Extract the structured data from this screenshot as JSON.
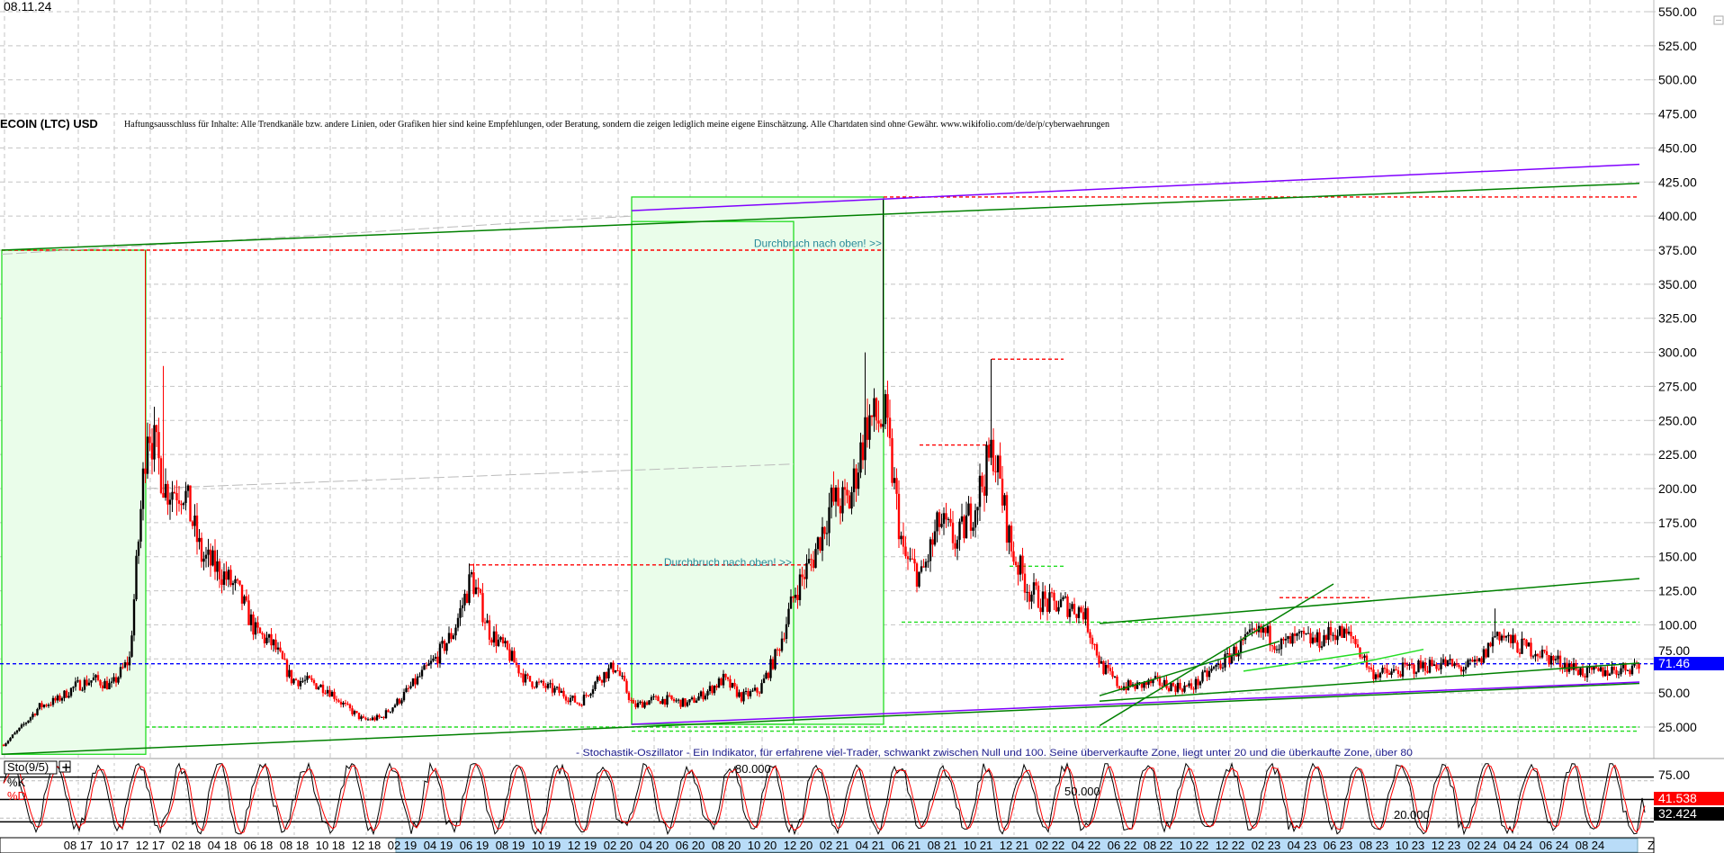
{
  "header": {
    "date": "08.11.24",
    "title": "ECOIN (LTC) USD",
    "disclaimer": "Haftungsausschluss für Inhalte: Alle Trendkanäle bzw. andere Linien, oder Grafiken hier sind keine Empfehlungen, oder Beratung, sondern die zeigen lediglich meine eigene Einschätzung. Alle Chartdaten sind ohne Gewähr. www.wikifolio.com/de/de/p/cyberwaehrungen"
  },
  "colors": {
    "up_candle": "#000000",
    "down_candle": "#ff0000",
    "trend_green": "#008000",
    "trend_purple": "#8000ff",
    "light_green": "#22dd22",
    "resistance_red": "#ff0000",
    "price_line": "#0000ff",
    "box_fill": "#eafdea",
    "annotation_text": "#2a8a9a",
    "axis_highlight": "#b9dcf8"
  },
  "chart_data": [
    {
      "type": "candlestick",
      "y_axis": {
        "ylim": [
          0,
          550
        ],
        "ticks": [
          "550.00",
          "525.00",
          "500.00",
          "475.00",
          "450.00",
          "425.00",
          "400.00",
          "375.00",
          "350.00",
          "325.00",
          "300.00",
          "275.00",
          "250.00",
          "225.00",
          "200.00",
          "175.00",
          "150.00",
          "125.00",
          "100.00",
          "75.00",
          "50.00",
          "25.000"
        ],
        "position": "right",
        "grid": true
      },
      "x_axis": {
        "start": "2017-04",
        "end": "2024-11",
        "tick_labels": [
          "08 17",
          "10 17",
          "12 17",
          "02 18",
          "04 18",
          "06 18",
          "08 18",
          "10 18",
          "12 18",
          "02 19",
          "04 19",
          "06 19",
          "08 19",
          "10 19",
          "12 19",
          "02 20",
          "04 20",
          "06 20",
          "08 20",
          "10 20",
          "12 20",
          "02 21",
          "04 21",
          "06 21",
          "08 21",
          "10 21",
          "12 21",
          "02 22",
          "04 22",
          "06 22",
          "08 22",
          "10 22",
          "12 22",
          "02 23",
          "04 23",
          "06 23",
          "08 23",
          "10 23",
          "12 23",
          "02 24",
          "04 24",
          "06 24",
          "08 24"
        ],
        "end_label": "Z"
      },
      "monthly_close": {
        "dates": [
          "2017-04",
          "2017-05",
          "2017-06",
          "2017-07",
          "2017-08",
          "2017-09",
          "2017-10",
          "2017-11",
          "2017-12",
          "2018-01",
          "2018-02",
          "2018-03",
          "2018-04",
          "2018-05",
          "2018-06",
          "2018-07",
          "2018-08",
          "2018-09",
          "2018-10",
          "2018-11",
          "2018-12",
          "2019-01",
          "2019-02",
          "2019-03",
          "2019-04",
          "2019-05",
          "2019-06",
          "2019-07",
          "2019-08",
          "2019-09",
          "2019-10",
          "2019-11",
          "2019-12",
          "2020-01",
          "2020-02",
          "2020-03",
          "2020-04",
          "2020-05",
          "2020-06",
          "2020-07",
          "2020-08",
          "2020-09",
          "2020-10",
          "2020-11",
          "2020-12",
          "2021-01",
          "2021-02",
          "2021-03",
          "2021-04",
          "2021-05",
          "2021-06",
          "2021-07",
          "2021-08",
          "2021-09",
          "2021-10",
          "2021-11",
          "2021-12",
          "2022-01",
          "2022-02",
          "2022-03",
          "2022-04",
          "2022-05",
          "2022-06",
          "2022-07",
          "2022-08",
          "2022-09",
          "2022-10",
          "2022-11",
          "2022-12",
          "2023-01",
          "2023-02",
          "2023-03",
          "2023-04",
          "2023-05",
          "2023-06",
          "2023-07",
          "2023-08",
          "2023-09",
          "2023-10",
          "2023-11",
          "2023-12",
          "2024-01",
          "2024-02",
          "2024-03",
          "2024-04",
          "2024-05",
          "2024-06",
          "2024-07",
          "2024-08",
          "2024-09",
          "2024-10",
          "2024-11"
        ],
        "values": [
          12,
          25,
          40,
          45,
          55,
          60,
          55,
          75,
          250,
          200,
          200,
          150,
          140,
          125,
          95,
          85,
          60,
          58,
          53,
          40,
          30,
          32,
          45,
          60,
          75,
          95,
          135,
          95,
          80,
          60,
          55,
          50,
          42,
          60,
          70,
          40,
          45,
          45,
          42,
          50,
          60,
          47,
          52,
          80,
          125,
          150,
          190,
          190,
          250,
          250,
          150,
          135,
          175,
          160,
          190,
          230,
          155,
          125,
          115,
          115,
          110,
          70,
          55,
          55,
          58,
          55,
          54,
          65,
          75,
          88,
          95,
          85,
          90,
          88,
          95,
          90,
          65,
          64,
          68,
          70,
          72,
          68,
          72,
          95,
          85,
          82,
          75,
          70,
          64,
          66,
          68,
          71.46
        ]
      },
      "peaks": [
        {
          "date": "2017-12",
          "high": 375
        },
        {
          "date": "2018-01",
          "high": 290
        },
        {
          "date": "2019-06",
          "high": 145
        },
        {
          "date": "2021-04",
          "high": 300
        },
        {
          "date": "2021-05",
          "high": 412
        },
        {
          "date": "2021-11",
          "high": 295
        },
        {
          "date": "2024-03",
          "high": 112
        }
      ],
      "last_price": "71.46",
      "trend_lines": [
        {
          "kind": "green",
          "from": [
            "2017-04",
            375
          ],
          "to": [
            "2024-11",
            424
          ]
        },
        {
          "kind": "purple",
          "from": [
            "2020-03",
            404
          ],
          "to": [
            "2024-11",
            438
          ]
        },
        {
          "kind": "green",
          "from": [
            "2017-04",
            5
          ],
          "to": [
            "2024-11",
            57
          ]
        },
        {
          "kind": "purple",
          "from": [
            "2020-03",
            27
          ],
          "to": [
            "2024-11",
            58
          ]
        },
        {
          "kind": "green",
          "from": [
            "2022-05",
            101
          ],
          "to": [
            "2024-11",
            134
          ]
        },
        {
          "kind": "green",
          "from": [
            "2022-05",
            26
          ],
          "to": [
            "2023-06",
            130
          ]
        },
        {
          "kind": "green",
          "from": [
            "2022-05",
            48
          ],
          "to": [
            "2023-03",
            88
          ]
        },
        {
          "kind": "green",
          "from": [
            "2022-05",
            44
          ],
          "to": [
            "2024-11",
            72
          ]
        },
        {
          "kind": "lightgreen",
          "from": [
            "2023-01",
            66
          ],
          "to": [
            "2023-08",
            80
          ]
        },
        {
          "kind": "lightgreen",
          "from": [
            "2023-06",
            68
          ],
          "to": [
            "2023-11",
            82
          ]
        }
      ],
      "horizontal_levels": [
        {
          "kind": "red",
          "price": 375,
          "from": "2017-04",
          "to": "2021-05"
        },
        {
          "kind": "red",
          "price": 414,
          "from": "2021-05",
          "to": "2024-11"
        },
        {
          "kind": "red",
          "price": 144,
          "from": "2019-06",
          "to": "2021-01"
        },
        {
          "kind": "red",
          "price": 295,
          "from": "2021-11",
          "to": "2022-03"
        },
        {
          "kind": "red",
          "price": 232,
          "from": "2021-07",
          "to": "2021-11"
        },
        {
          "kind": "red",
          "price": 120,
          "from": "2023-03",
          "to": "2023-08"
        },
        {
          "kind": "lightgreen",
          "price": 102,
          "from": "2021-06",
          "to": "2024-11"
        },
        {
          "kind": "lightgreen",
          "price": 143,
          "from": "2021-12",
          "to": "2022-03"
        },
        {
          "kind": "lightgreen",
          "price": 25,
          "from": "2017-12",
          "to": "2024-11"
        },
        {
          "kind": "lightgreen",
          "price": 22,
          "from": "2020-03",
          "to": "2024-11"
        },
        {
          "kind": "grey",
          "price": 71.46,
          "from": "2017-04",
          "to": "2024-11"
        }
      ],
      "grey_lines": [
        {
          "from": [
            "2017-04",
            372
          ],
          "to": [
            "2020-03",
            400
          ]
        },
        {
          "from": [
            "2017-12",
            200
          ],
          "to": [
            "2020-12",
            218
          ]
        }
      ],
      "boxes": [
        {
          "from": "2017-04",
          "to": "2017-12",
          "low": 5,
          "high": 375
        },
        {
          "from": "2020-03",
          "to": "2021-05",
          "low": 27,
          "high": 414
        },
        {
          "from": "2020-03",
          "to": "2020-12",
          "low": 27,
          "high": 396
        }
      ],
      "annotations": [
        {
          "text": "Durchbruch nach oben! >>",
          "date": "2021-05",
          "price": 380
        },
        {
          "text": "Durchbruch nach oben! >>",
          "date": "2020-12",
          "price": 146
        }
      ]
    },
    {
      "type": "line",
      "name": "Sto(9/5)",
      "series": [
        {
          "name": "%K",
          "last": "32.424"
        },
        {
          "name": "%D",
          "last": "41.538"
        }
      ],
      "levels": [
        "80.000",
        "50.000",
        "20.000"
      ],
      "y_axis_label": "75.00",
      "description": "- Stochastik-Oszillator - Ein Indikator, für erfahrene viel-Trader, schwankt zwischen Null und 100. Seine überverkaufte Zone, liegt unter 20 und die überkaufte Zone, über 80"
    }
  ]
}
